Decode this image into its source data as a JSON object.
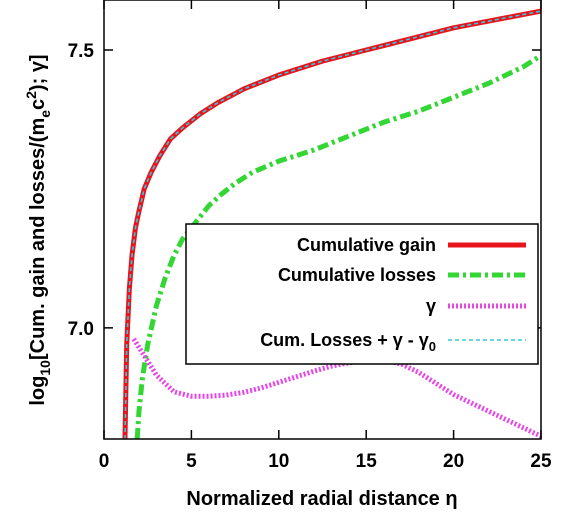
{
  "chart_data": {
    "type": "line",
    "title": "",
    "xlabel": "Normalized radial distance η",
    "ylabel_parts": {
      "pre": "log",
      "sub": "10",
      "mid1": "[Cum. gain and losses/(m",
      "sub2": "e",
      "mid2": "c",
      "sup": "2",
      "post": "); γ]"
    },
    "xlim": [
      0,
      25
    ],
    "ylim": [
      6.8,
      7.59
    ],
    "log_y_values": true,
    "grid": false,
    "legend_position": "center-right",
    "x_ticks": [
      "0",
      "5",
      "10",
      "15",
      "20",
      "25"
    ],
    "x_tick_values": [
      0,
      5,
      10,
      15,
      20,
      25
    ],
    "y_ticks": [
      "7.0",
      "7.5"
    ],
    "y_tick_values": [
      7.0,
      7.5
    ],
    "series": [
      {
        "name": "Cumulative gain",
        "color": "#e8141c",
        "style": "solid",
        "x": [
          1.2,
          1.3,
          1.45,
          1.6,
          1.8,
          2.0,
          2.3,
          2.7,
          3.2,
          3.8,
          4.5,
          5.5,
          6.5,
          8.0,
          10.0,
          12.5,
          15.0,
          17.5,
          20.0,
          22.5,
          25.0
        ],
        "y": [
          6.8,
          6.97,
          7.07,
          7.13,
          7.18,
          7.21,
          7.25,
          7.28,
          7.31,
          7.34,
          7.36,
          7.385,
          7.405,
          7.43,
          7.455,
          7.48,
          7.5,
          7.52,
          7.54,
          7.555,
          7.57
        ]
      },
      {
        "name": "Cumulative losses",
        "color": "#33d633",
        "style": "dashdot",
        "x": [
          1.9,
          2.0,
          2.2,
          2.5,
          3.0,
          3.5,
          4.0,
          4.5,
          5.0,
          5.5,
          6.0,
          6.7,
          7.5,
          8.5,
          10.0,
          12.0,
          14.0,
          16.0,
          18.0,
          20.0,
          22.0,
          24.0,
          25.0
        ],
        "y": [
          6.8,
          6.85,
          6.91,
          6.97,
          7.04,
          7.09,
          7.13,
          7.16,
          7.18,
          7.2,
          7.22,
          7.24,
          7.26,
          7.28,
          7.3,
          7.32,
          7.345,
          7.37,
          7.39,
          7.415,
          7.44,
          7.47,
          7.49
        ]
      },
      {
        "name": "γ",
        "color": "#e844e8",
        "style": "dotted",
        "x": [
          1.7,
          2.0,
          2.5,
          3.0,
          3.5,
          4.0,
          5.0,
          6.0,
          7.0,
          8.0,
          9.0,
          10.0,
          11.0,
          12.0,
          13.0,
          14.0,
          15.0,
          16.0,
          17.0,
          18.0,
          19.0,
          20.0,
          21.0,
          22.0,
          23.0,
          24.0,
          25.0
        ],
        "y": [
          6.98,
          6.965,
          6.94,
          6.915,
          6.9,
          6.885,
          6.877,
          6.877,
          6.879,
          6.884,
          6.892,
          6.902,
          6.912,
          6.922,
          6.931,
          6.937,
          6.941,
          6.942,
          6.935,
          6.92,
          6.9,
          6.88,
          6.865,
          6.85,
          6.835,
          6.82,
          6.805
        ]
      },
      {
        "name": "Cum. Losses + γ - γ",
        "name_sub": "0",
        "color": "#33c8e0",
        "style": "dashed",
        "x": [
          1.2,
          1.3,
          1.45,
          1.6,
          1.8,
          2.0,
          2.3,
          2.7,
          3.2,
          3.8,
          4.5,
          5.5,
          6.5,
          8.0,
          10.0,
          12.5,
          15.0,
          17.5,
          20.0,
          22.5,
          25.0
        ],
        "y": [
          6.8,
          6.97,
          7.07,
          7.13,
          7.18,
          7.21,
          7.25,
          7.28,
          7.31,
          7.34,
          7.36,
          7.385,
          7.405,
          7.43,
          7.455,
          7.48,
          7.5,
          7.52,
          7.54,
          7.555,
          7.57
        ]
      }
    ]
  }
}
